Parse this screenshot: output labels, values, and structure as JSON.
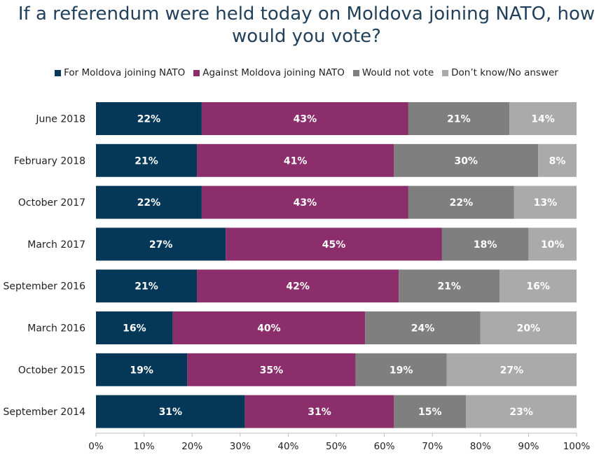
{
  "chart_data": {
    "type": "bar",
    "orientation": "horizontal",
    "stacked": true,
    "title_lines": [
      "If a referendum were held today on Moldova joining NATO, how",
      "would you vote?"
    ],
    "categories": [
      "June 2018",
      "February 2018",
      "October 2017",
      "March 2017",
      "September 2016",
      "March 2016",
      "October 2015",
      "September 2014"
    ],
    "series": [
      {
        "name": "For Moldova joining NATO",
        "color": "#053858",
        "values": [
          22,
          21,
          22,
          27,
          21,
          16,
          19,
          31
        ]
      },
      {
        "name": "Against Moldova joining NATO",
        "color": "#8b2e6b",
        "values": [
          43,
          41,
          43,
          45,
          42,
          40,
          35,
          31
        ]
      },
      {
        "name": "Would not vote",
        "color": "#7f7f7f",
        "values": [
          21,
          30,
          22,
          18,
          21,
          24,
          19,
          15
        ]
      },
      {
        "name": "Don’t know/No answer",
        "color": "#aaaaaa",
        "values": [
          14,
          8,
          13,
          10,
          16,
          20,
          27,
          23
        ]
      }
    ],
    "value_suffix": "%",
    "xlim": [
      0,
      100
    ],
    "x_ticks": [
      "0%",
      "10%",
      "20%",
      "30%",
      "40%",
      "50%",
      "60%",
      "70%",
      "80%",
      "90%",
      "100%"
    ],
    "grid": false,
    "legend_position": "top"
  }
}
